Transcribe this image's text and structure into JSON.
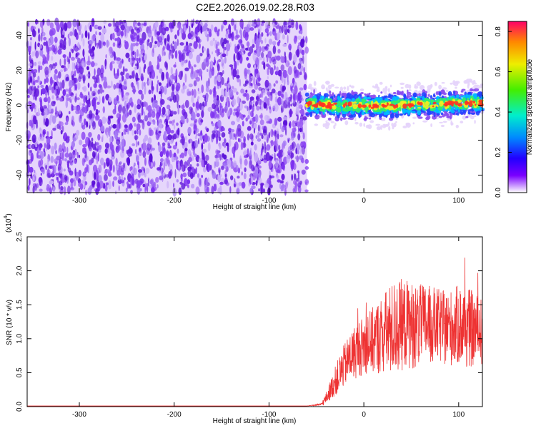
{
  "title": "C2E2.2026.019.02.28.R03",
  "colors": {
    "snr_line": "#ee3333",
    "noise_purple": "#6a1fe0",
    "axis": "#000000"
  },
  "chart_data": [
    {
      "type": "heatmap",
      "xlabel": "Height of straight line (km)",
      "ylabel": "Frequency (Hz)",
      "xlim": [
        -355,
        125
      ],
      "ylim": [
        -50,
        48
      ],
      "xticks": [
        -300,
        -200,
        -100,
        0,
        100
      ],
      "xtick_labels": [
        "-300",
        "-200",
        "-100",
        "0",
        "100"
      ],
      "yticks": [
        -40,
        -20,
        0,
        20,
        40
      ],
      "ytick_labels": [
        "-40",
        "-20",
        "0",
        "20",
        "40"
      ],
      "noise_region_x": [
        -355,
        -60
      ],
      "signal_region_x": [
        -60,
        125
      ],
      "signal_center_freq": 0,
      "signal_halfwidth_hz": 6,
      "colorbar": {
        "label": "Normalized spectral amplitude",
        "range": [
          0.0,
          0.85
        ],
        "ticks": [
          0.0,
          0.2,
          0.4,
          0.6,
          0.8
        ],
        "tick_labels": [
          "0.0",
          "0.2",
          "0.4",
          "0.6",
          "0.8"
        ]
      }
    },
    {
      "type": "line",
      "xlabel": "Height of straight line (km)",
      "ylabel": "SNR (10 * v/v)",
      "scale_label": "(x10",
      "scale_exp": "4",
      "scale_close": ")",
      "xlim": [
        -355,
        125
      ],
      "ylim": [
        0,
        2.5
      ],
      "xticks": [
        -300,
        -200,
        -100,
        0,
        100
      ],
      "xtick_labels": [
        "-300",
        "-200",
        "-100",
        "0",
        "100"
      ],
      "yticks": [
        0.0,
        0.5,
        1.0,
        1.5,
        2.0,
        2.5
      ],
      "ytick_labels": [
        "0.0",
        "0.5",
        "1.0",
        "1.5",
        "2.0",
        "2.5"
      ],
      "series": [
        {
          "x": [
            -355,
            -300,
            -200,
            -100,
            -60,
            -45,
            -40,
            -35,
            -30,
            -25,
            -20,
            -15,
            -10,
            -5,
            0,
            5,
            10,
            15,
            20,
            25,
            30,
            35,
            40,
            45,
            50,
            55,
            60,
            65,
            70,
            75,
            80,
            85,
            90,
            95,
            100,
            105,
            110,
            115,
            120,
            125
          ],
          "values": [
            0.01,
            0.01,
            0.01,
            0.01,
            0.01,
            0.03,
            0.12,
            0.25,
            0.38,
            0.5,
            0.62,
            0.72,
            0.8,
            0.86,
            0.9,
            0.94,
            0.98,
            1.02,
            1.06,
            1.1,
            1.14,
            1.18,
            1.2,
            1.22,
            1.2,
            1.18,
            1.2,
            1.22,
            1.2,
            1.2,
            1.18,
            1.16,
            1.15,
            1.18,
            1.2,
            1.18,
            1.16,
            1.14,
            1.12,
            1.1
          ],
          "noise_amplitude": [
            0,
            0,
            0,
            0,
            0,
            0.02,
            0.08,
            0.15,
            0.22,
            0.28,
            0.32,
            0.36,
            0.4,
            0.42,
            0.44,
            0.46,
            0.5,
            0.55,
            0.6,
            0.65,
            0.7,
            0.7,
            0.68,
            0.66,
            0.65,
            0.62,
            0.6,
            0.6,
            0.58,
            0.56,
            0.55,
            0.55,
            0.56,
            0.58,
            0.6,
            0.62,
            0.6,
            0.56,
            0.52,
            0.5
          ]
        }
      ]
    }
  ]
}
